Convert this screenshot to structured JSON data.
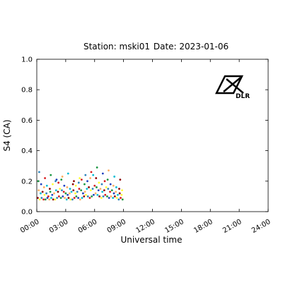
{
  "header": {
    "station": "Station: mski01",
    "date": "Date: 2023-01-06"
  },
  "logo": {
    "text": "DLR",
    "icon": "dlr-logo-icon"
  },
  "chart_data": {
    "type": "scatter",
    "title": "Station: mski01    Date: 2023-01-06",
    "xlabel": "Universal time",
    "ylabel": "S4 (CA)",
    "xlim": [
      0,
      24
    ],
    "ylim": [
      0,
      1.0
    ],
    "x_tick_labels": [
      "00:00",
      "03:00",
      "06:00",
      "09:00",
      "12:00",
      "15:00",
      "18:00",
      "21:00",
      "24:00"
    ],
    "x_ticks": [
      0,
      3,
      6,
      9,
      12,
      15,
      18,
      21,
      24
    ],
    "y_tick_labels": [
      "0.0",
      "0.2",
      "0.4",
      "0.6",
      "0.8",
      "1.0"
    ],
    "y_ticks": [
      0.0,
      0.2,
      0.4,
      0.6,
      0.8,
      1.0
    ],
    "grid": false,
    "colormap": [
      "#8b0000",
      "#d7191c",
      "#fdae61",
      "#ffff33",
      "#1a9641",
      "#00bcd4",
      "#2b83ba",
      "#1f3fbf"
    ],
    "series": [
      {
        "x": [
          0.1,
          0.3,
          0.5,
          0.7,
          0.9,
          1.1,
          1.3,
          1.5,
          1.7,
          1.9,
          2.1,
          2.3,
          2.5,
          2.7,
          2.9,
          3.1,
          3.3,
          3.5,
          3.7,
          3.9,
          4.1,
          4.3,
          4.5,
          4.7,
          4.9,
          5.1,
          5.3,
          5.5,
          5.7,
          5.9,
          6.1,
          6.3,
          6.5,
          6.7,
          6.9,
          7.1,
          7.3,
          7.5,
          7.7,
          7.9,
          8.1,
          8.3,
          8.5,
          8.7,
          8.9
        ],
        "y": [
          0.09,
          0.08,
          0.09,
          0.08,
          0.08,
          0.09,
          0.08,
          0.09,
          0.08,
          0.08,
          0.09,
          0.1,
          0.09,
          0.1,
          0.09,
          0.08,
          0.09,
          0.08,
          0.08,
          0.09,
          0.1,
          0.09,
          0.08,
          0.09,
          0.1,
          0.11,
          0.1,
          0.09,
          0.1,
          0.11,
          0.12,
          0.11,
          0.1,
          0.09,
          0.1,
          0.11,
          0.1,
          0.09,
          0.1,
          0.09,
          0.1,
          0.09,
          0.08,
          0.09,
          0.08
        ]
      },
      {
        "x": [
          0.2,
          0.4,
          0.6,
          0.8,
          1.0,
          1.2,
          1.4,
          1.6,
          1.8,
          2.0,
          2.2,
          2.4,
          2.6,
          2.8,
          3.0,
          3.2,
          3.4,
          3.6,
          3.8,
          4.0,
          4.2,
          4.4,
          4.6,
          4.8,
          5.0,
          5.2,
          5.4,
          5.6,
          5.8,
          6.0,
          6.2,
          6.4,
          6.6,
          6.8,
          7.0,
          7.2,
          7.4,
          7.6,
          7.8,
          8.0,
          8.2,
          8.4,
          8.6,
          8.8
        ],
        "y": [
          0.14,
          0.12,
          0.13,
          0.11,
          0.12,
          0.1,
          0.13,
          0.11,
          0.12,
          0.14,
          0.13,
          0.15,
          0.14,
          0.13,
          0.12,
          0.11,
          0.12,
          0.13,
          0.14,
          0.12,
          0.13,
          0.15,
          0.14,
          0.12,
          0.13,
          0.15,
          0.16,
          0.14,
          0.15,
          0.17,
          0.16,
          0.14,
          0.15,
          0.13,
          0.14,
          0.16,
          0.15,
          0.13,
          0.14,
          0.12,
          0.13,
          0.11,
          0.12,
          0.11
        ]
      },
      {
        "x": [
          0.15,
          0.45,
          0.75,
          1.05,
          1.35,
          1.65,
          1.95,
          2.25,
          2.55,
          2.85,
          3.15,
          3.45,
          3.75,
          4.05,
          4.35,
          4.65,
          4.95,
          5.25,
          5.55,
          5.85,
          6.15,
          6.45,
          6.75,
          7.05,
          7.35,
          7.65,
          7.95,
          8.25,
          8.55,
          8.85
        ],
        "y": [
          0.2,
          0.18,
          0.16,
          0.17,
          0.15,
          0.18,
          0.2,
          0.19,
          0.21,
          0.17,
          0.16,
          0.15,
          0.18,
          0.17,
          0.19,
          0.21,
          0.18,
          0.2,
          0.22,
          0.24,
          0.22,
          0.19,
          0.18,
          0.2,
          0.21,
          0.18,
          0.17,
          0.16,
          0.15,
          0.14
        ]
      },
      {
        "x": [
          0.25,
          0.85,
          1.45,
          2.05,
          2.65,
          3.25,
          3.85,
          4.45,
          5.05,
          5.65,
          6.25,
          6.85,
          7.45,
          8.05,
          8.65
        ],
        "y": [
          0.26,
          0.22,
          0.24,
          0.21,
          0.23,
          0.25,
          0.2,
          0.22,
          0.24,
          0.26,
          0.29,
          0.25,
          0.27,
          0.23,
          0.21
        ]
      }
    ]
  }
}
